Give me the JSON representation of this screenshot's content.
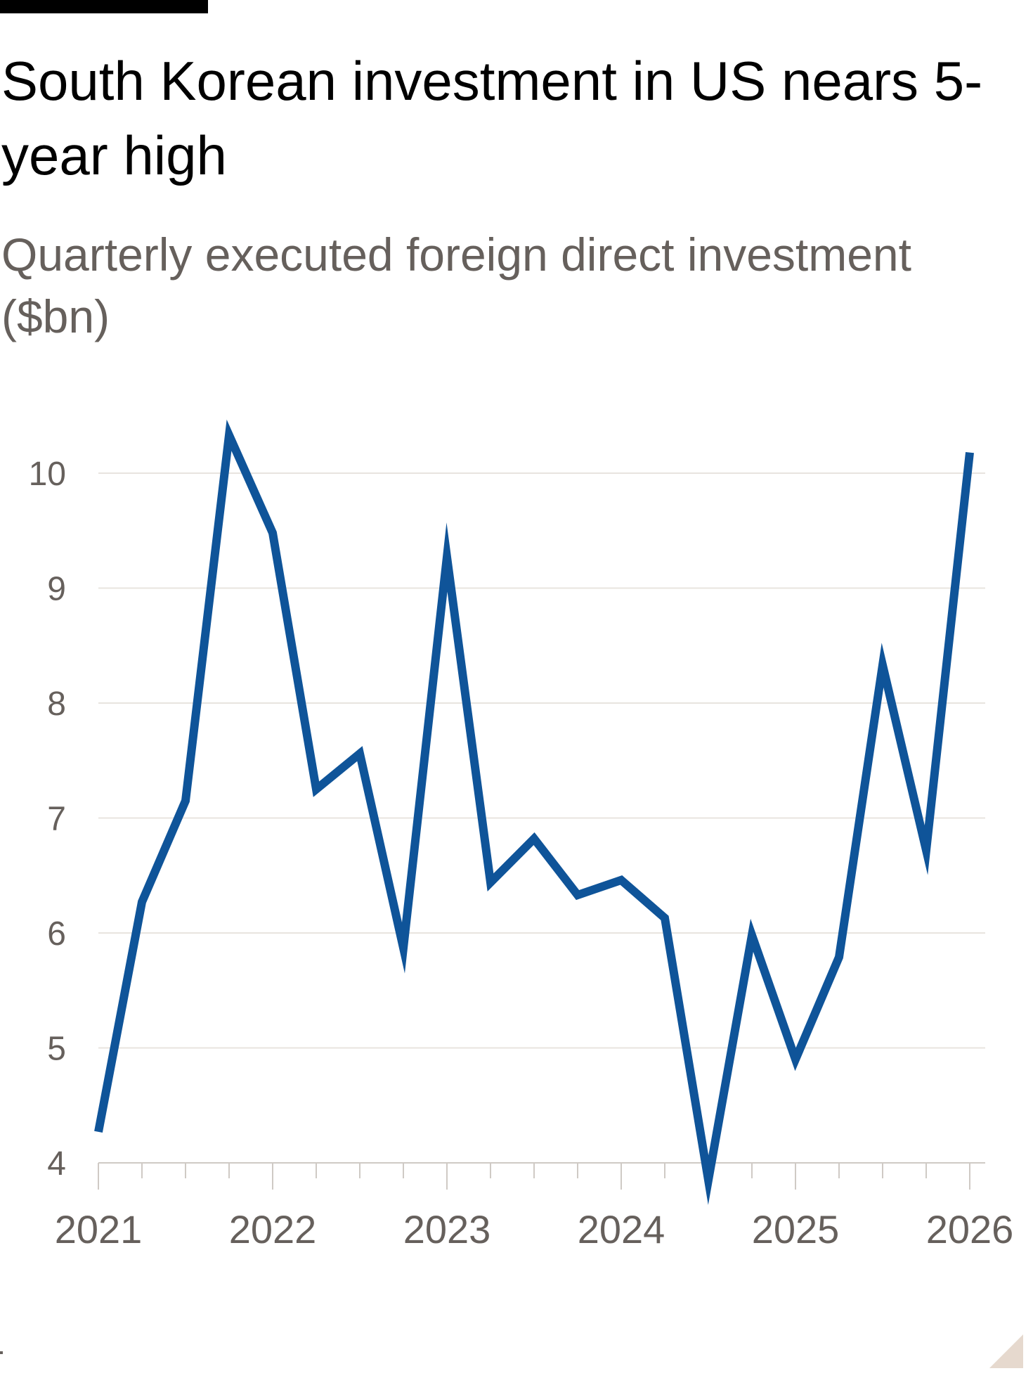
{
  "header": {
    "title": "South Korean investment in US nears 5-year high",
    "subtitle": "Quarterly executed foreign direct investment ($bn)"
  },
  "chart_data": {
    "type": "line",
    "title": "South Korean investment in US nears 5-year high",
    "subtitle": "Quarterly executed foreign direct investment ($bn)",
    "xlabel": "",
    "ylabel": "",
    "x": [
      "2021-Q1",
      "2021-Q2",
      "2021-Q3",
      "2021-Q4",
      "2022-Q1",
      "2022-Q2",
      "2022-Q3",
      "2022-Q4",
      "2023-Q1",
      "2023-Q2",
      "2023-Q3",
      "2023-Q4",
      "2024-Q1",
      "2024-Q2",
      "2024-Q3",
      "2024-Q4",
      "2025-Q1",
      "2025-Q2",
      "2025-Q3",
      "2025-Q4",
      "2026-Q1"
    ],
    "xlim": [
      2021,
      2026
    ],
    "x_ticks": [
      "2021",
      "2022",
      "2023",
      "2024",
      "2025",
      "2026"
    ],
    "series": [
      {
        "values": [
          4.27,
          6.27,
          7.15,
          10.33,
          9.48,
          7.25,
          7.56,
          5.87,
          9.27,
          6.44,
          6.82,
          6.33,
          6.46,
          6.13,
          3.85,
          5.98,
          4.9,
          5.79,
          8.33,
          6.72,
          10.18
        ],
        "color": "#0f5499"
      }
    ],
    "ylim": [
      4,
      10.6
    ],
    "y_ticks": [
      "4",
      "5",
      "6",
      "7",
      "8",
      "9",
      "10"
    ],
    "grid": true,
    "colors": {
      "line": "#0f5499",
      "grid": "#e8e4df",
      "axis": "#cfcac5",
      "text": "#66605c"
    }
  }
}
